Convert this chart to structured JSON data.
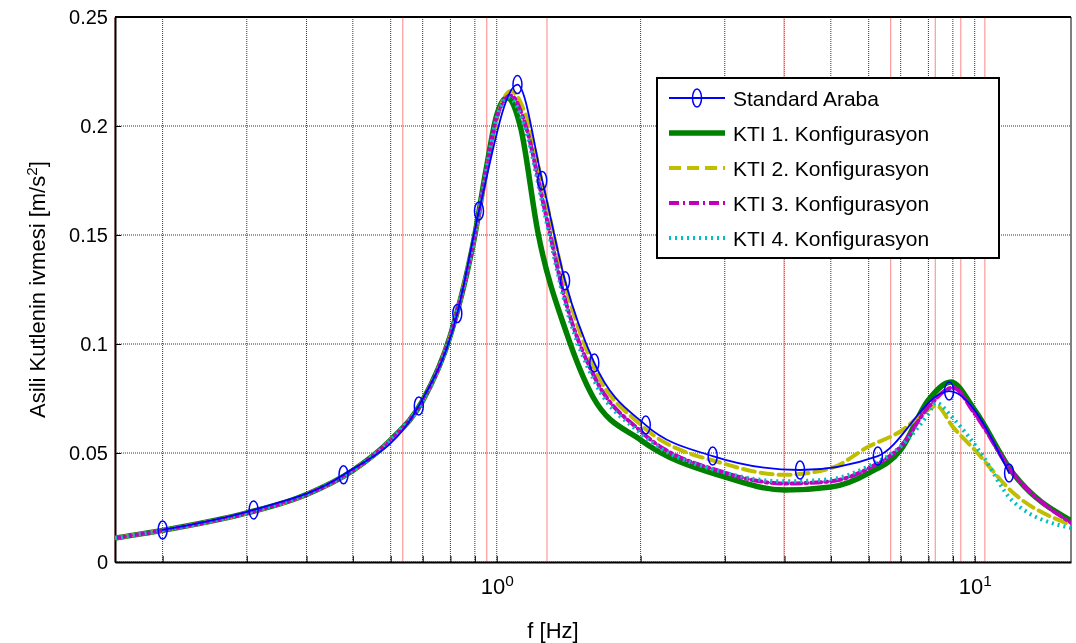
{
  "chart_data": {
    "type": "line",
    "xlabel": "f [Hz]",
    "ylabel": "Asili Kutlenin ivmesi [m/s$^{2}$]",
    "log": "x",
    "xlim": [
      0.159,
      15.9
    ],
    "ylim": [
      0,
      0.25
    ],
    "xticks": [
      {
        "value": 0.2,
        "label": null
      },
      {
        "value": 0.3,
        "label": null
      },
      {
        "value": 0.4,
        "label": null
      },
      {
        "value": 0.5,
        "label": null
      },
      {
        "value": 0.6,
        "label": null
      },
      {
        "value": 0.7,
        "label": null
      },
      {
        "value": 0.8,
        "label": null
      },
      {
        "value": 0.9,
        "label": null
      },
      {
        "value": 1,
        "label": "10$^{0}$"
      },
      {
        "value": 2,
        "label": null
      },
      {
        "value": 3,
        "label": null
      },
      {
        "value": 4,
        "label": null
      },
      {
        "value": 5,
        "label": null
      },
      {
        "value": 6,
        "label": null
      },
      {
        "value": 7,
        "label": null
      },
      {
        "value": 8,
        "label": null
      },
      {
        "value": 9,
        "label": null
      },
      {
        "value": 10,
        "label": "10$^{1}$"
      }
    ],
    "yticks": [
      0,
      0.05,
      {
        "value": 0.1,
        "label": "0.1"
      },
      0.15,
      {
        "value": 0.2,
        "label": "0.2"
      },
      0.25
    ],
    "grid": true,
    "legend": "top right",
    "ref_lines": [
      {
        "axis": "x",
        "value": 0.159,
        "color": "#ff9999"
      },
      {
        "axis": "x",
        "value": 0.636,
        "color": "#ff9999"
      },
      {
        "axis": "x",
        "value": 0.953,
        "color": "#ff9999"
      },
      {
        "axis": "x",
        "value": 1.274,
        "color": "#ff9999"
      },
      {
        "axis": "x",
        "value": 3.99,
        "color": "#ff9999"
      },
      {
        "axis": "x",
        "value": 6.67,
        "color": "#ff9999"
      },
      {
        "axis": "x",
        "value": 8.27,
        "color": "#ff9999"
      },
      {
        "axis": "x",
        "value": 9.35,
        "color": "#ff9999"
      },
      {
        "axis": "x",
        "value": 10.5,
        "color": "#ff9999"
      }
    ],
    "series": [
      {
        "name": "Standard Araba",
        "color": "#0000ff",
        "marker": "circle",
        "line_style": "solid",
        "x": [
          0.2,
          0.31,
          0.478,
          0.687,
          0.827,
          0.918,
          1.105,
          1.245,
          1.39,
          1.6,
          2.05,
          2.83,
          4.31,
          6.27,
          8.84,
          11.8
        ],
        "values": [
          0.0147,
          0.0239,
          0.04,
          0.0716,
          0.114,
          0.161,
          0.219,
          0.175,
          0.129,
          0.0913,
          0.0628,
          0.0486,
          0.0422,
          0.0486,
          0.0784,
          0.0408
        ]
      },
      {
        "name": "KTI 1. Konfigurasyon",
        "color": "#008000",
        "marker": "none",
        "line_style": "solid",
        "x": [
          0.159,
          0.2,
          0.3,
          0.4,
          0.5,
          0.6,
          0.7,
          0.8,
          0.9,
          0.95,
          1.0,
          1.05,
          1.12,
          1.22,
          1.4,
          1.59,
          2,
          3,
          4,
          5,
          6,
          7,
          8,
          8.92,
          10,
          12,
          15.9
        ],
        "values": [
          0.011,
          0.0145,
          0.0225,
          0.031,
          0.042,
          0.056,
          0.074,
          0.104,
          0.15,
          0.18,
          0.205,
          0.213,
          0.2,
          0.151,
          0.105,
          0.0757,
          0.056,
          0.039,
          0.033,
          0.0344,
          0.0408,
          0.0514,
          0.0743,
          0.0826,
          0.0697,
          0.041,
          0.019
        ]
      },
      {
        "name": "KTI 2. Konfigurasyon",
        "color": "#bfbf00",
        "marker": "none",
        "line_style": "dashed",
        "x": [
          0.159,
          0.2,
          0.3,
          0.4,
          0.5,
          0.6,
          0.7,
          0.8,
          0.9,
          0.95,
          1.0,
          1.07,
          1.15,
          1.25,
          1.4,
          1.6,
          2,
          3,
          4,
          5,
          6,
          7,
          8,
          8.3,
          9,
          10,
          12,
          15.9
        ],
        "values": [
          0.011,
          0.0145,
          0.0225,
          0.031,
          0.042,
          0.056,
          0.074,
          0.104,
          0.15,
          0.178,
          0.203,
          0.216,
          0.205,
          0.172,
          0.125,
          0.089,
          0.063,
          0.045,
          0.04,
          0.043,
          0.053,
          0.06,
          0.07,
          0.0717,
          0.062,
          0.0514,
          0.032,
          0.017
        ]
      },
      {
        "name": "KTI 3. Konfigurasyon",
        "color": "#bf00bf",
        "marker": "none",
        "line_style": "dashdot",
        "x": [
          0.159,
          0.2,
          0.3,
          0.4,
          0.5,
          0.6,
          0.7,
          0.8,
          0.9,
          0.95,
          1.0,
          1.07,
          1.15,
          1.25,
          1.4,
          1.6,
          2,
          3,
          4,
          5,
          6,
          7,
          8,
          9,
          10,
          12,
          15.9
        ],
        "values": [
          0.011,
          0.0145,
          0.0225,
          0.031,
          0.042,
          0.056,
          0.074,
          0.104,
          0.15,
          0.179,
          0.204,
          0.214,
          0.2,
          0.165,
          0.118,
          0.085,
          0.06,
          0.041,
          0.036,
          0.037,
          0.043,
          0.053,
          0.071,
          0.08,
          0.068,
          0.041,
          0.018
        ]
      },
      {
        "name": "KTI 4. Konfigurasyon",
        "color": "#00bfbf",
        "marker": "none",
        "line_style": "dotted",
        "x": [
          0.159,
          0.2,
          0.3,
          0.4,
          0.5,
          0.6,
          0.7,
          0.8,
          0.9,
          0.95,
          1.0,
          1.06,
          1.15,
          1.25,
          1.4,
          1.6,
          2,
          3,
          4,
          5,
          6,
          7,
          8,
          8.3,
          9,
          10.3,
          12,
          15.9
        ],
        "values": [
          0.011,
          0.0145,
          0.0225,
          0.031,
          0.042,
          0.056,
          0.074,
          0.104,
          0.15,
          0.179,
          0.204,
          0.213,
          0.198,
          0.163,
          0.116,
          0.083,
          0.059,
          0.041,
          0.037,
          0.038,
          0.044,
          0.053,
          0.068,
          0.073,
          0.066,
          0.05,
          0.028,
          0.0156
        ]
      }
    ]
  }
}
